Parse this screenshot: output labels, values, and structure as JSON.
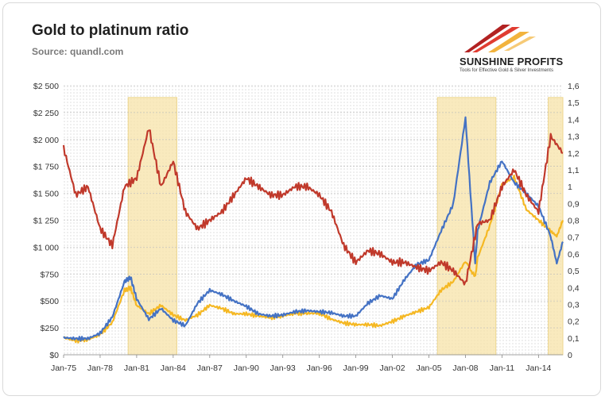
{
  "header": {
    "title": "Gold to platinum ratio",
    "source": "Source: quandl.com"
  },
  "logo": {
    "name": "SUNSHINE PROFITS",
    "tagline": "Tools for Effective Gold & Silver Investments",
    "colors": [
      "#b22222",
      "#e03c31",
      "#f2b33d"
    ]
  },
  "chart_data": {
    "type": "line",
    "x_axis": {
      "ticks": [
        "Jan-75",
        "Jan-78",
        "Jan-81",
        "Jan-84",
        "Jan-87",
        "Jan-90",
        "Jan-93",
        "Jan-96",
        "Jan-99",
        "Jan-02",
        "Jan-05",
        "Jan-08",
        "Jan-11",
        "Jan-14"
      ],
      "range": [
        1975.0,
        2016.0
      ]
    },
    "y_left": {
      "ticks": [
        "$0",
        "$250",
        "$500",
        "$750",
        "$1 000",
        "$1 250",
        "$1 500",
        "$1 750",
        "$2 000",
        "$2 250",
        "$2 500"
      ],
      "range": [
        0,
        2500
      ]
    },
    "y_right": {
      "ticks": [
        "0",
        "0,1",
        "0,2",
        "0,3",
        "0,4",
        "0,5",
        "0,6",
        "0,7",
        "0,8",
        "0,9",
        "1",
        "1,1",
        "1,2",
        "1,3",
        "1,4",
        "1,5",
        "1,6"
      ],
      "range": [
        0,
        1.6
      ]
    },
    "shaded_periods": [
      {
        "start": 1980.3,
        "end": 1984.3
      },
      {
        "start": 2005.7,
        "end": 2010.5
      },
      {
        "start": 2014.8,
        "end": 2016.0
      }
    ],
    "shade_color": "#f7e4a9",
    "grid": "dotted",
    "series": [
      {
        "axis": "left",
        "color": "#f5b823",
        "points": [
          [
            1975,
            160
          ],
          [
            1976,
            130
          ],
          [
            1977,
            140
          ],
          [
            1978,
            190
          ],
          [
            1979,
            300
          ],
          [
            1980,
            600
          ],
          [
            1980.5,
            620
          ],
          [
            1981,
            460
          ],
          [
            1982,
            380
          ],
          [
            1983,
            460
          ],
          [
            1984,
            370
          ],
          [
            1985,
            320
          ],
          [
            1986,
            370
          ],
          [
            1987,
            460
          ],
          [
            1988,
            430
          ],
          [
            1989,
            380
          ],
          [
            1990,
            380
          ],
          [
            1991,
            360
          ],
          [
            1992,
            345
          ],
          [
            1993,
            360
          ],
          [
            1994,
            385
          ],
          [
            1995,
            385
          ],
          [
            1996,
            385
          ],
          [
            1997,
            330
          ],
          [
            1998,
            295
          ],
          [
            1999,
            280
          ],
          [
            2000,
            280
          ],
          [
            2001,
            270
          ],
          [
            2002,
            310
          ],
          [
            2003,
            360
          ],
          [
            2004,
            400
          ],
          [
            2005,
            440
          ],
          [
            2006,
            600
          ],
          [
            2007,
            680
          ],
          [
            2008,
            870
          ],
          [
            2008.8,
            720
          ],
          [
            2009,
            900
          ],
          [
            2010,
            1200
          ],
          [
            2011,
            1580
          ],
          [
            2012,
            1650
          ],
          [
            2013,
            1350
          ],
          [
            2014,
            1250
          ],
          [
            2015,
            1150
          ],
          [
            2015.5,
            1100
          ],
          [
            2016,
            1250
          ]
        ]
      },
      {
        "axis": "left",
        "color": "#4472c4",
        "points": [
          [
            1975,
            160
          ],
          [
            1976,
            150
          ],
          [
            1977,
            150
          ],
          [
            1978,
            200
          ],
          [
            1979,
            350
          ],
          [
            1980,
            680
          ],
          [
            1980.5,
            720
          ],
          [
            1981,
            520
          ],
          [
            1982,
            330
          ],
          [
            1983,
            430
          ],
          [
            1984,
            320
          ],
          [
            1985,
            270
          ],
          [
            1986,
            480
          ],
          [
            1987,
            600
          ],
          [
            1988,
            560
          ],
          [
            1989,
            500
          ],
          [
            1990,
            450
          ],
          [
            1991,
            380
          ],
          [
            1992,
            360
          ],
          [
            1993,
            370
          ],
          [
            1994,
            400
          ],
          [
            1995,
            410
          ],
          [
            1996,
            400
          ],
          [
            1997,
            390
          ],
          [
            1998,
            360
          ],
          [
            1999,
            360
          ],
          [
            2000,
            480
          ],
          [
            2001,
            550
          ],
          [
            2002,
            520
          ],
          [
            2003,
            700
          ],
          [
            2004,
            840
          ],
          [
            2005,
            880
          ],
          [
            2006,
            1150
          ],
          [
            2007,
            1400
          ],
          [
            2008,
            2200
          ],
          [
            2008.8,
            850
          ],
          [
            2009,
            1150
          ],
          [
            2010,
            1600
          ],
          [
            2011,
            1800
          ],
          [
            2012,
            1600
          ],
          [
            2013,
            1500
          ],
          [
            2014,
            1380
          ],
          [
            2015,
            1100
          ],
          [
            2015.5,
            850
          ],
          [
            2016,
            1050
          ]
        ]
      },
      {
        "axis": "right",
        "color": "#c0392b",
        "points": [
          [
            1975,
            1.23
          ],
          [
            1976,
            0.95
          ],
          [
            1977,
            1.0
          ],
          [
            1978,
            0.75
          ],
          [
            1979,
            0.65
          ],
          [
            1980,
            1.0
          ],
          [
            1981,
            1.05
          ],
          [
            1982,
            1.35
          ],
          [
            1983,
            1.0
          ],
          [
            1984,
            1.15
          ],
          [
            1985,
            0.85
          ],
          [
            1986,
            0.75
          ],
          [
            1987,
            0.8
          ],
          [
            1988,
            0.85
          ],
          [
            1989,
            0.95
          ],
          [
            1990,
            1.05
          ],
          [
            1991,
            1.0
          ],
          [
            1992,
            0.95
          ],
          [
            1993,
            0.95
          ],
          [
            1994,
            1.0
          ],
          [
            1995,
            1.0
          ],
          [
            1996,
            0.95
          ],
          [
            1997,
            0.85
          ],
          [
            1998,
            0.65
          ],
          [
            1999,
            0.55
          ],
          [
            2000,
            0.62
          ],
          [
            2001,
            0.6
          ],
          [
            2002,
            0.55
          ],
          [
            2003,
            0.55
          ],
          [
            2004,
            0.52
          ],
          [
            2005,
            0.5
          ],
          [
            2006,
            0.55
          ],
          [
            2007,
            0.5
          ],
          [
            2008,
            0.42
          ],
          [
            2009,
            0.78
          ],
          [
            2010,
            0.8
          ],
          [
            2011,
            1.0
          ],
          [
            2012,
            1.1
          ],
          [
            2013,
            0.95
          ],
          [
            2014,
            0.85
          ],
          [
            2015,
            1.3
          ],
          [
            2016,
            1.2
          ]
        ]
      }
    ]
  }
}
